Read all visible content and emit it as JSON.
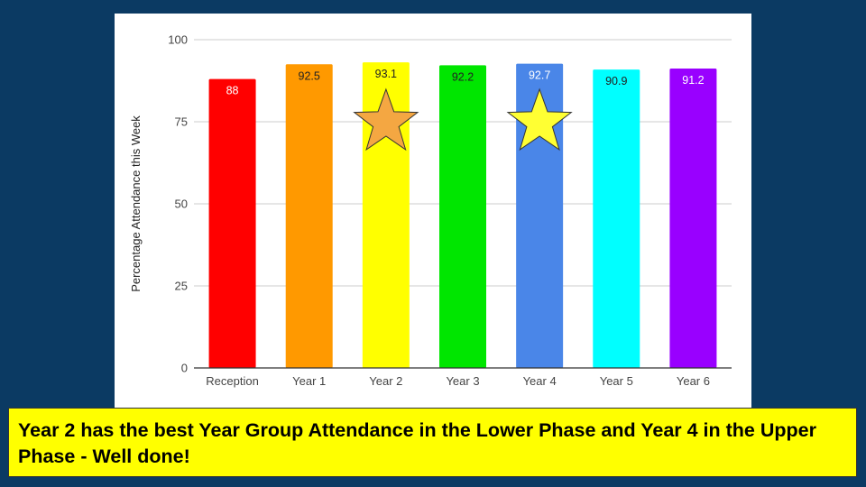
{
  "chart_data": {
    "type": "bar",
    "categories": [
      "Reception",
      "Year 1",
      "Year 2",
      "Year 3",
      "Year 4",
      "Year 5",
      "Year 6"
    ],
    "values": [
      88,
      92.5,
      93.1,
      92.2,
      92.7,
      90.9,
      91.2
    ],
    "value_labels": [
      "88",
      "92.5",
      "93.1",
      "92.2",
      "92.7",
      "90.9",
      "91.2"
    ],
    "bar_colors": [
      "#ff0000",
      "#ff9900",
      "#ffff00",
      "#00e600",
      "#4a86e8",
      "#00ffff",
      "#9900ff"
    ],
    "label_colors": [
      "#ffffff",
      "#222222",
      "#222222",
      "#222222",
      "#ffffff",
      "#222222",
      "#ffffff"
    ],
    "ylabel": "Percentage Attendance this Week",
    "yticks": [
      0,
      25,
      50,
      75,
      100
    ],
    "ytick_labels": [
      "0",
      "25",
      "50",
      "75",
      "100"
    ],
    "ylim": [
      0,
      100
    ],
    "grid": true,
    "legend": "none",
    "star_markers": [
      {
        "category": "Year 2",
        "fill": "#f4a742"
      },
      {
        "category": "Year 4",
        "fill": "#ffff33"
      }
    ]
  },
  "caption": "Year 2 has the best Year Group Attendance in the Lower Phase and Year 4 in the Upper Phase - Well done!"
}
